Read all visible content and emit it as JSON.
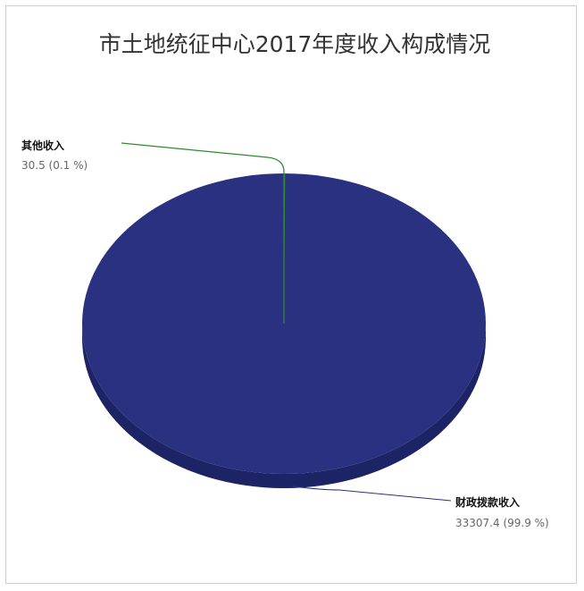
{
  "chart_data": {
    "type": "pie",
    "style": "3d",
    "title": "市土地统征中心2017年度收入构成情况",
    "slices": [
      {
        "name": "财政拨款收入",
        "value": 33307.4,
        "percent_label": "33307.4 (99.9 %)",
        "color": "#2a3180"
      },
      {
        "name": "其他收入",
        "value": 30.5,
        "percent_label": "30.5 (0.1 %)",
        "color": "#2e8b2e"
      }
    ]
  },
  "colors": {
    "pie_top": "#2a3180",
    "pie_side": "#1d2466",
    "leader_main": "#2a3180",
    "leader_other": "#2e8b2e"
  }
}
